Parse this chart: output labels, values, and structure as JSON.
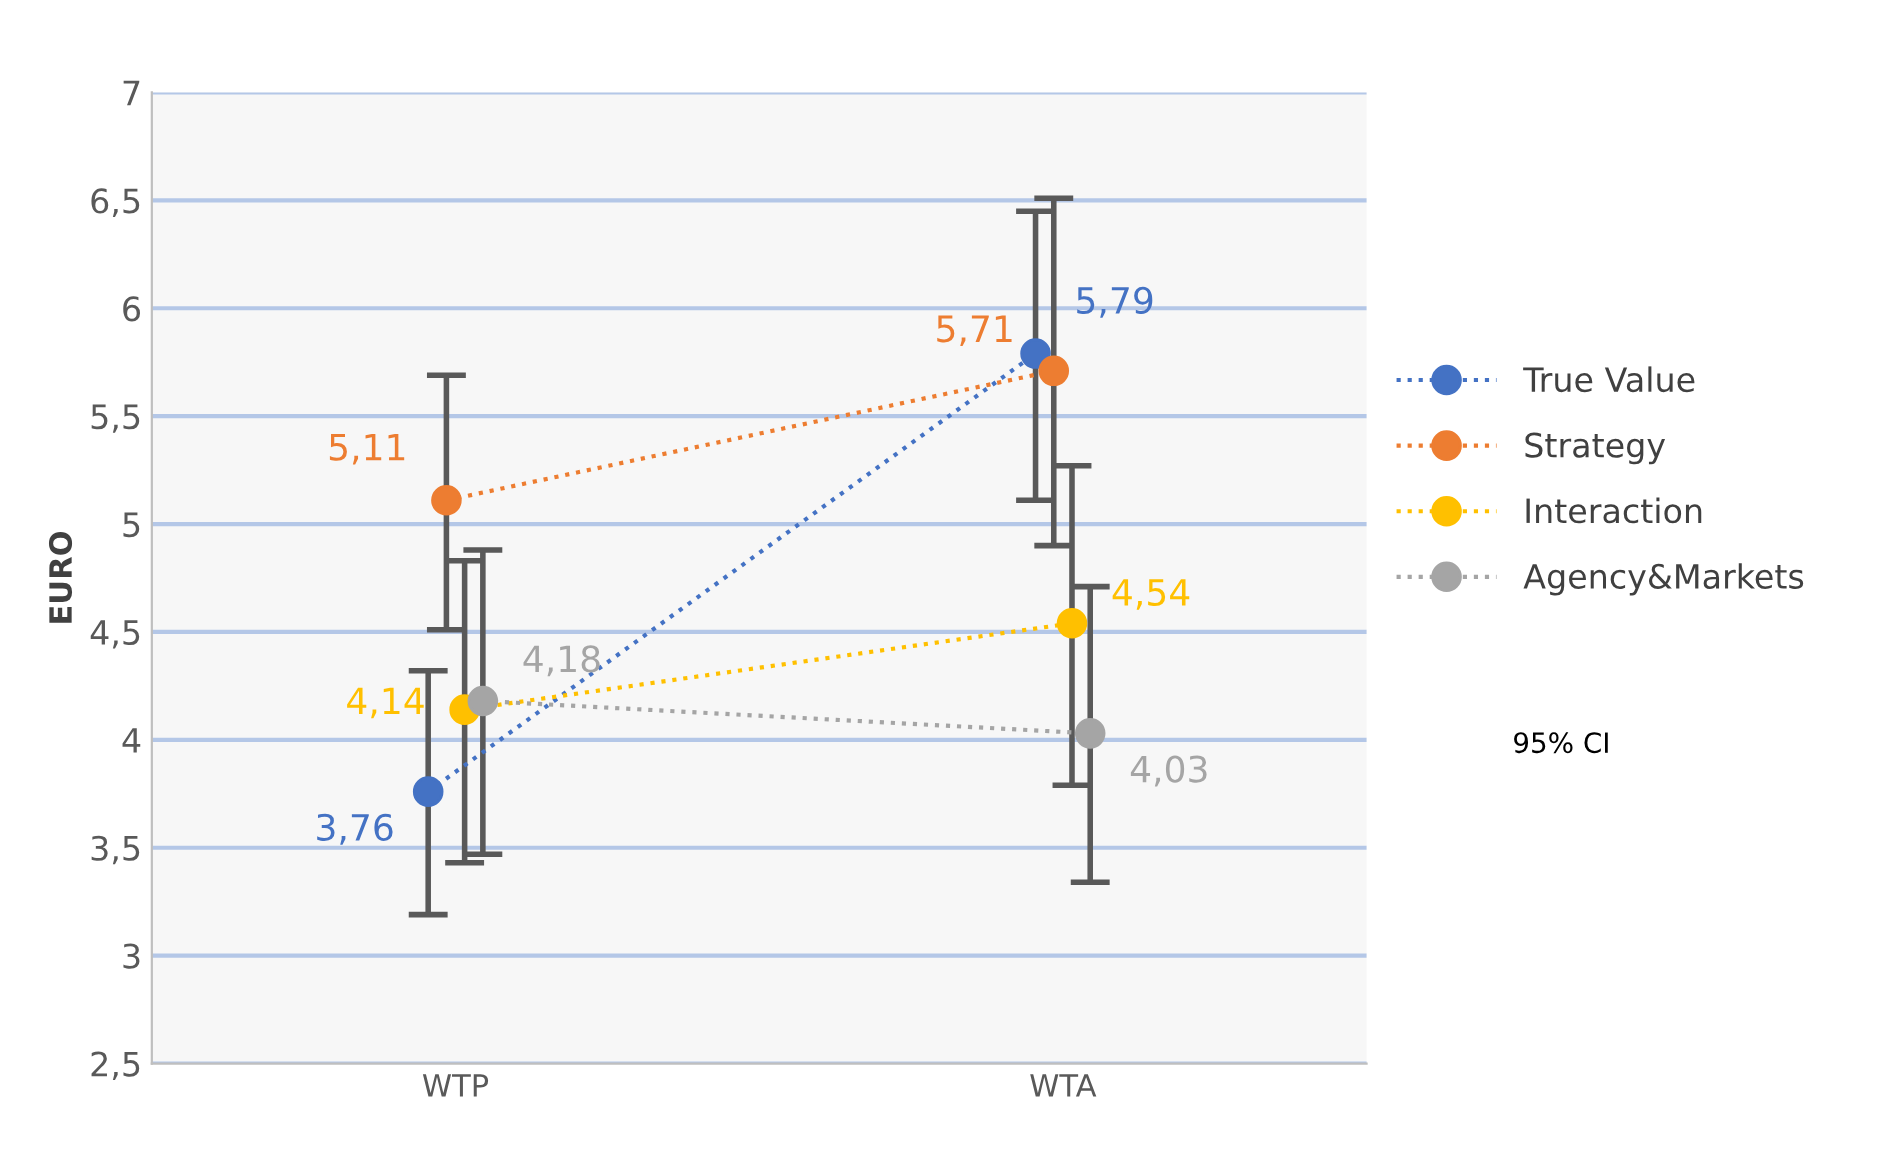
{
  "chart_data": {
    "type": "line",
    "ylabel": "EURO",
    "categories": [
      "WTP",
      "WTA"
    ],
    "series": [
      {
        "name": "True Value",
        "color": "#4472c4",
        "values": [
          3.76,
          5.79
        ],
        "value_labels": [
          "3,76",
          "5,79"
        ],
        "errors": [
          [
            3.19,
            4.32
          ],
          [
            5.11,
            6.45
          ]
        ]
      },
      {
        "name": "Strategy",
        "color": "#ed7d31",
        "values": [
          5.11,
          5.71
        ],
        "value_labels": [
          "5,11",
          "5,71"
        ],
        "errors": [
          [
            4.51,
            5.69
          ],
          [
            4.9,
            6.51
          ]
        ]
      },
      {
        "name": "Interaction",
        "color": "#ffc000",
        "values": [
          4.14,
          4.54
        ],
        "value_labels": [
          "4,14",
          "4,54"
        ],
        "errors": [
          [
            3.43,
            4.83
          ],
          [
            3.79,
            5.27
          ]
        ]
      },
      {
        "name": "Agency&Markets",
        "color": "#a5a5a5",
        "values": [
          4.18,
          4.03
        ],
        "value_labels": [
          "4,18",
          "4,03"
        ],
        "errors": [
          [
            3.47,
            4.88
          ],
          [
            3.34,
            4.71
          ]
        ]
      }
    ],
    "ylim": [
      2.5,
      7
    ],
    "yticks": [
      {
        "value": 2.5,
        "label": "2,5"
      },
      3,
      {
        "value": 3.5,
        "label": "3,5"
      },
      4,
      {
        "value": 4.5,
        "label": "4,5"
      },
      5,
      {
        "value": 5.5,
        "label": "5,5"
      },
      6,
      {
        "value": 6.5,
        "label": "6,5"
      },
      7
    ],
    "grid": "y",
    "legend": "right",
    "marker": "circle",
    "line_style": "dotted",
    "annotations": [
      "95% CI"
    ]
  }
}
